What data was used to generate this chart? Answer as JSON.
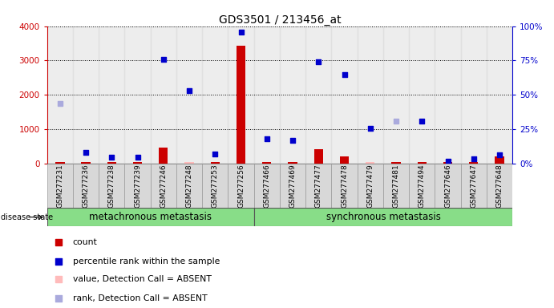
{
  "title": "GDS3501 / 213456_at",
  "samples": [
    "GSM277231",
    "GSM277236",
    "GSM277238",
    "GSM277239",
    "GSM277246",
    "GSM277248",
    "GSM277253",
    "GSM277256",
    "GSM277466",
    "GSM277469",
    "GSM277477",
    "GSM277478",
    "GSM277479",
    "GSM277481",
    "GSM277494",
    "GSM277646",
    "GSM277647",
    "GSM277648"
  ],
  "count_values": [
    30,
    30,
    30,
    30,
    460,
    30,
    30,
    3430,
    30,
    30,
    400,
    200,
    30,
    30,
    30,
    30,
    30,
    200
  ],
  "absent_count_indices": [
    5,
    12
  ],
  "rank_values": [
    1750,
    310,
    165,
    175,
    3030,
    2120,
    265,
    3820,
    710,
    660,
    2960,
    2590,
    1020,
    1230,
    1225,
    50,
    130,
    250
  ],
  "absent_rank_indices": [
    0,
    13
  ],
  "group1_count": 8,
  "group1_label": "metachronous metastasis",
  "group2_label": "synchronous metastasis",
  "ylim_left": [
    0,
    4000
  ],
  "yticks_left": [
    0,
    1000,
    2000,
    3000,
    4000
  ],
  "ytick_labels_left": [
    "0",
    "1000",
    "2000",
    "3000",
    "4000"
  ],
  "yticks_right_vals": [
    0,
    1000,
    2000,
    3000,
    4000
  ],
  "ytick_labels_right": [
    "0%",
    "25%",
    "50%",
    "75%",
    "100%"
  ],
  "color_count": "#cc0000",
  "color_count_absent": "#ffbbbb",
  "color_rank": "#0000cc",
  "color_rank_absent": "#aaaadd",
  "bar_width": 0.35,
  "group_bar_color": "#88dd88",
  "group_bar_outline": "#555555",
  "disease_state_label": "disease state",
  "legend_items": [
    {
      "label": "count",
      "color": "#cc0000"
    },
    {
      "label": "percentile rank within the sample",
      "color": "#0000cc"
    },
    {
      "label": "value, Detection Call = ABSENT",
      "color": "#ffbbbb"
    },
    {
      "label": "rank, Detection Call = ABSENT",
      "color": "#aaaadd"
    }
  ],
  "dotted_lines": [
    1000,
    2000,
    3000,
    4000
  ]
}
